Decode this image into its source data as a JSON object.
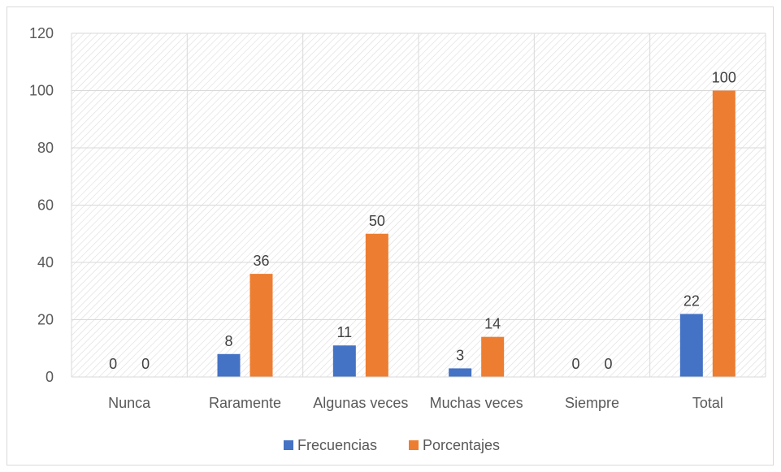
{
  "chart_data": {
    "type": "bar",
    "categories": [
      "Nunca",
      "Raramente",
      "Algunas veces",
      "Muchas veces",
      "Siempre",
      "Total"
    ],
    "series": [
      {
        "name": "Frecuencias",
        "values": [
          0,
          8,
          11,
          3,
          0,
          22
        ],
        "color": "#4472C4"
      },
      {
        "name": "Porcentajes",
        "values": [
          0,
          36,
          50,
          14,
          0,
          100
        ],
        "color": "#ED7D31"
      }
    ],
    "yticks": [
      0,
      20,
      40,
      60,
      80,
      100,
      120
    ],
    "ylim": [
      0,
      120
    ],
    "grid": true,
    "plot_background": "hatched",
    "legend_position": "bottom",
    "data_labels": true
  }
}
